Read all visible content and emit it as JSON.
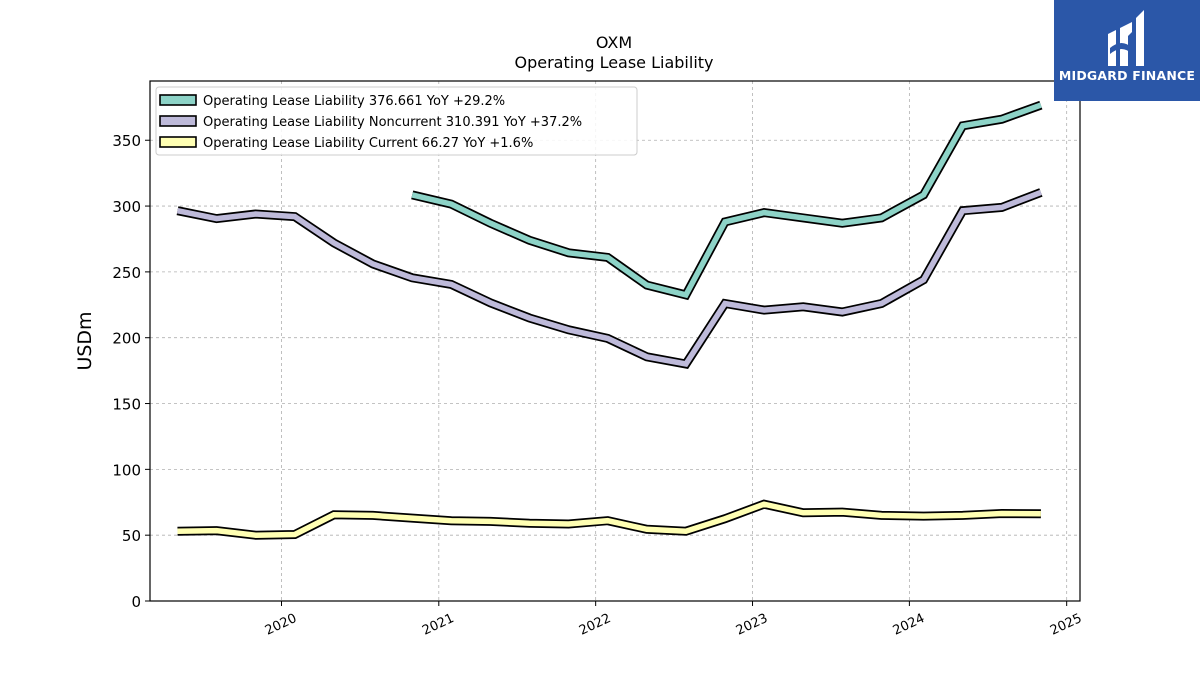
{
  "chart_data": {
    "type": "line",
    "title": "OXM",
    "subtitle": "Operating Lease Liability",
    "xlabel": "",
    "ylabel": "USDm",
    "xlim": [
      "2019-03-01",
      "2025-02-01"
    ],
    "ylim": [
      0,
      395
    ],
    "yticks": [
      0,
      50,
      100,
      150,
      200,
      250,
      300,
      350
    ],
    "xticks": [
      "2020",
      "2021",
      "2022",
      "2023",
      "2024",
      "2025"
    ],
    "grid": true,
    "legend_position": "top-left",
    "x": [
      "2019-05-04",
      "2019-08-03",
      "2019-11-02",
      "2020-02-01",
      "2020-05-02",
      "2020-08-01",
      "2020-10-31",
      "2021-01-30",
      "2021-05-01",
      "2021-07-31",
      "2021-10-30",
      "2022-01-29",
      "2022-04-30",
      "2022-07-30",
      "2022-10-29",
      "2023-01-28",
      "2023-04-29",
      "2023-07-29",
      "2023-10-28",
      "2024-02-03",
      "2024-05-04",
      "2024-08-03",
      "2024-11-02"
    ],
    "series": [
      {
        "name": "Operating Lease Liability",
        "legend_label": "Operating Lease Liability  376.661 YoY +29.2%",
        "color": "#8dd3c7",
        "values": [
          null,
          null,
          null,
          null,
          null,
          null,
          308.5,
          301.5,
          287.0,
          274.0,
          264.5,
          261.0,
          240.0,
          232.5,
          288.0,
          295.0,
          291.0,
          287.0,
          291.0,
          308.5,
          361.0,
          366.0,
          376.661
        ]
      },
      {
        "name": "Operating Lease Liability Noncurrent",
        "legend_label": "Operating Lease Liability Noncurrent  310.391 YoY +37.2%",
        "color": "#bebada",
        "values": [
          296.5,
          290.5,
          294.0,
          292.0,
          272.0,
          256.0,
          245.5,
          240.5,
          226.5,
          215.0,
          206.0,
          199.5,
          185.5,
          180.0,
          226.0,
          221.0,
          223.5,
          219.5,
          226.0,
          244.0,
          296.5,
          299.0,
          310.391
        ]
      },
      {
        "name": "Operating Lease Liability Current",
        "legend_label": "Operating Lease Liability Current  66.27 YoY +1.6%",
        "color": "#ffffb3",
        "values": [
          53.0,
          53.5,
          50.0,
          50.5,
          65.5,
          65.0,
          63.0,
          61.0,
          60.5,
          59.0,
          58.5,
          61.0,
          54.5,
          53.0,
          62.5,
          73.5,
          67.0,
          67.5,
          65.0,
          64.5,
          65.0,
          66.5,
          66.27
        ]
      }
    ]
  },
  "brand": {
    "name": "MIDGARD FINANCE",
    "color": "#2b57a8",
    "icon": "midgard-logo-icon"
  }
}
